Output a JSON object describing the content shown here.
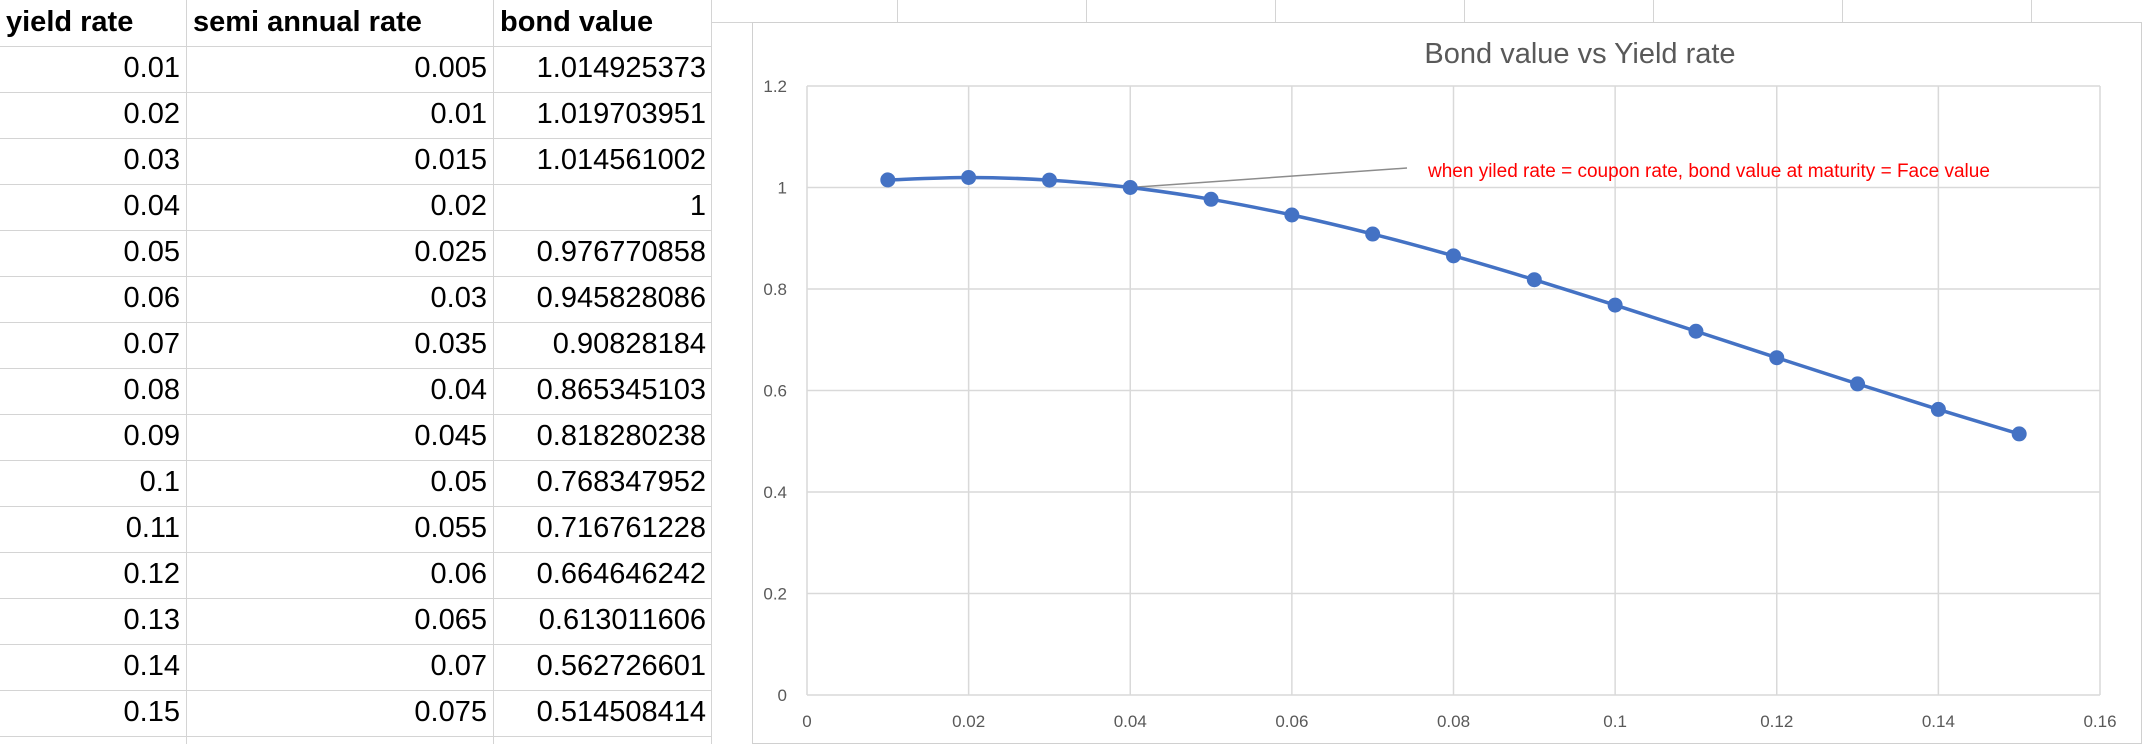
{
  "table": {
    "headers": [
      "yield rate",
      "semi annual rate",
      "bond value"
    ],
    "rows": [
      [
        "0.01",
        "0.005",
        "1.014925373"
      ],
      [
        "0.02",
        "0.01",
        "1.019703951"
      ],
      [
        "0.03",
        "0.015",
        "1.014561002"
      ],
      [
        "0.04",
        "0.02",
        "1"
      ],
      [
        "0.05",
        "0.025",
        "0.976770858"
      ],
      [
        "0.06",
        "0.03",
        "0.945828086"
      ],
      [
        "0.07",
        "0.035",
        "0.90828184"
      ],
      [
        "0.08",
        "0.04",
        "0.865345103"
      ],
      [
        "0.09",
        "0.045",
        "0.818280238"
      ],
      [
        "0.1",
        "0.05",
        "0.768347952"
      ],
      [
        "0.11",
        "0.055",
        "0.716761228"
      ],
      [
        "0.12",
        "0.06",
        "0.664646242"
      ],
      [
        "0.13",
        "0.065",
        "0.613011606"
      ],
      [
        "0.14",
        "0.07",
        "0.562726601"
      ],
      [
        "0.15",
        "0.075",
        "0.514508414"
      ]
    ]
  },
  "chart_data": {
    "type": "line",
    "title": "Bond value vs Yield rate",
    "xlabel": "",
    "ylabel": "",
    "xlim": [
      0,
      0.16
    ],
    "ylim": [
      0,
      1.2
    ],
    "grid": true,
    "x_ticks": [
      0,
      0.02,
      0.04,
      0.06,
      0.08,
      0.1,
      0.12,
      0.14,
      0.16
    ],
    "x_tick_labels": [
      "0",
      "0.02",
      "0.04",
      "0.06",
      "0.08",
      "0.1",
      "0.12",
      "0.14",
      "0.16"
    ],
    "y_ticks": [
      0,
      0.2,
      0.4,
      0.6,
      0.8,
      1,
      1.2
    ],
    "y_tick_labels": [
      "0",
      "0.2",
      "0.4",
      "0.6",
      "0.8",
      "1",
      "1.2"
    ],
    "series": [
      {
        "name": "bond value",
        "color": "#4472c4",
        "x": [
          0.01,
          0.02,
          0.03,
          0.04,
          0.05,
          0.06,
          0.07,
          0.08,
          0.09,
          0.1,
          0.11,
          0.12,
          0.13,
          0.14,
          0.15
        ],
        "y": [
          1.014925373,
          1.019703951,
          1.014561002,
          1,
          0.976770858,
          0.945828086,
          0.90828184,
          0.865345103,
          0.818280238,
          0.768347952,
          0.716761228,
          0.664646242,
          0.613011606,
          0.562726601,
          0.514508414
        ]
      }
    ],
    "annotation": {
      "text": "when yiled rate = coupon rate, bond value at maturity  = Face value",
      "color": "#ff0000",
      "x": 0.04,
      "y": 1
    },
    "gridline_color": "#d9d9d9",
    "title_color": "#595959",
    "tick_color": "#595959"
  }
}
